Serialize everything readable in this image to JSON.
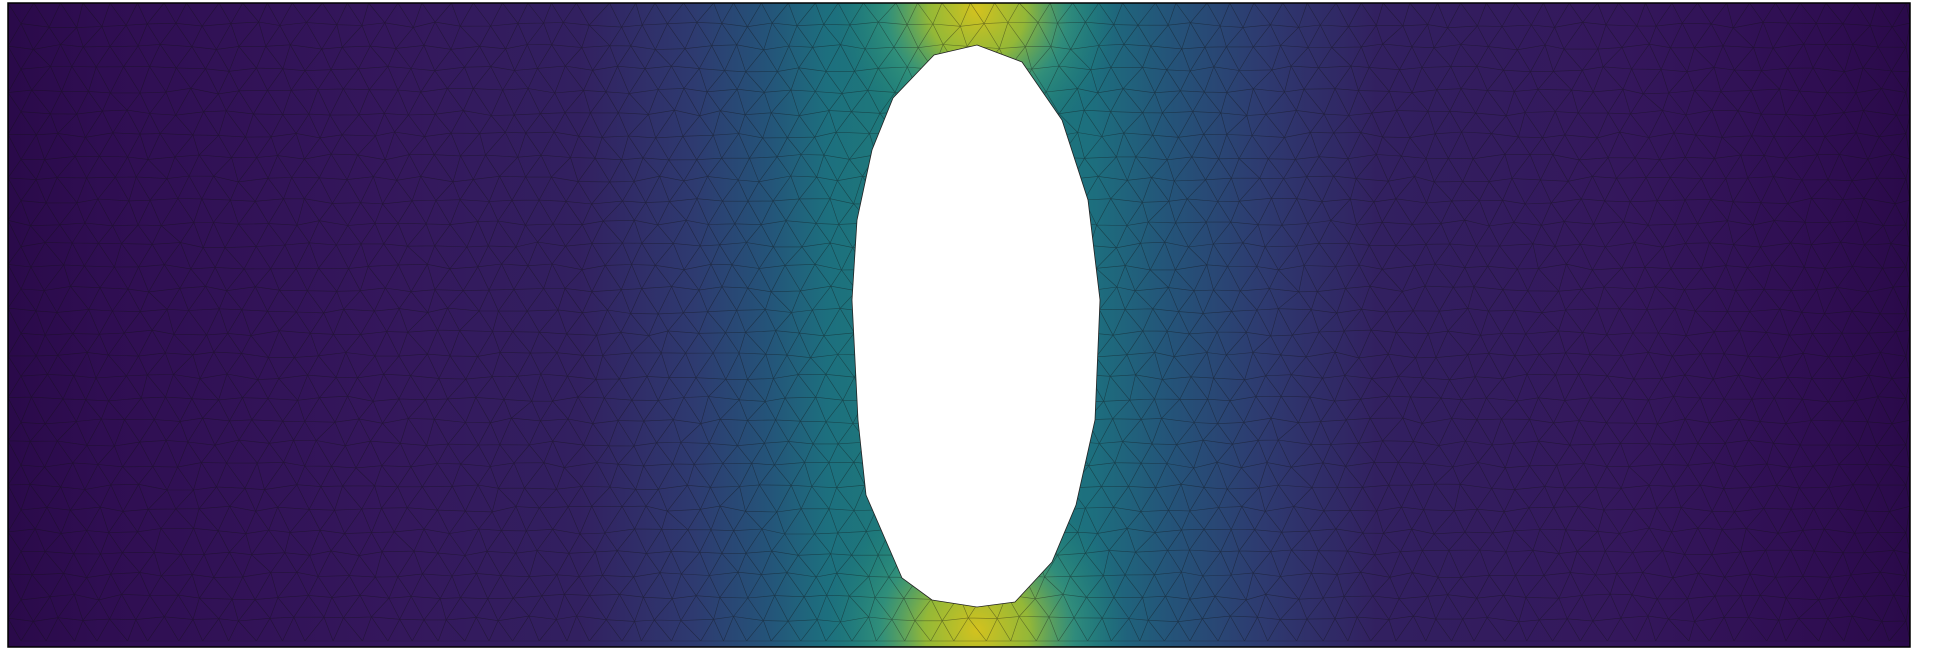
{
  "figure": {
    "colormap": [
      "#440154",
      "#30285e",
      "#2d3e8c",
      "#22508c",
      "#1f7a8c",
      "#22a884",
      "#84c73f",
      "#bfc42a",
      "#d6c11e"
    ],
    "mesh_edge_color": "#111111",
    "hole_color": "#ffffff",
    "border_color": "#000000"
  }
}
